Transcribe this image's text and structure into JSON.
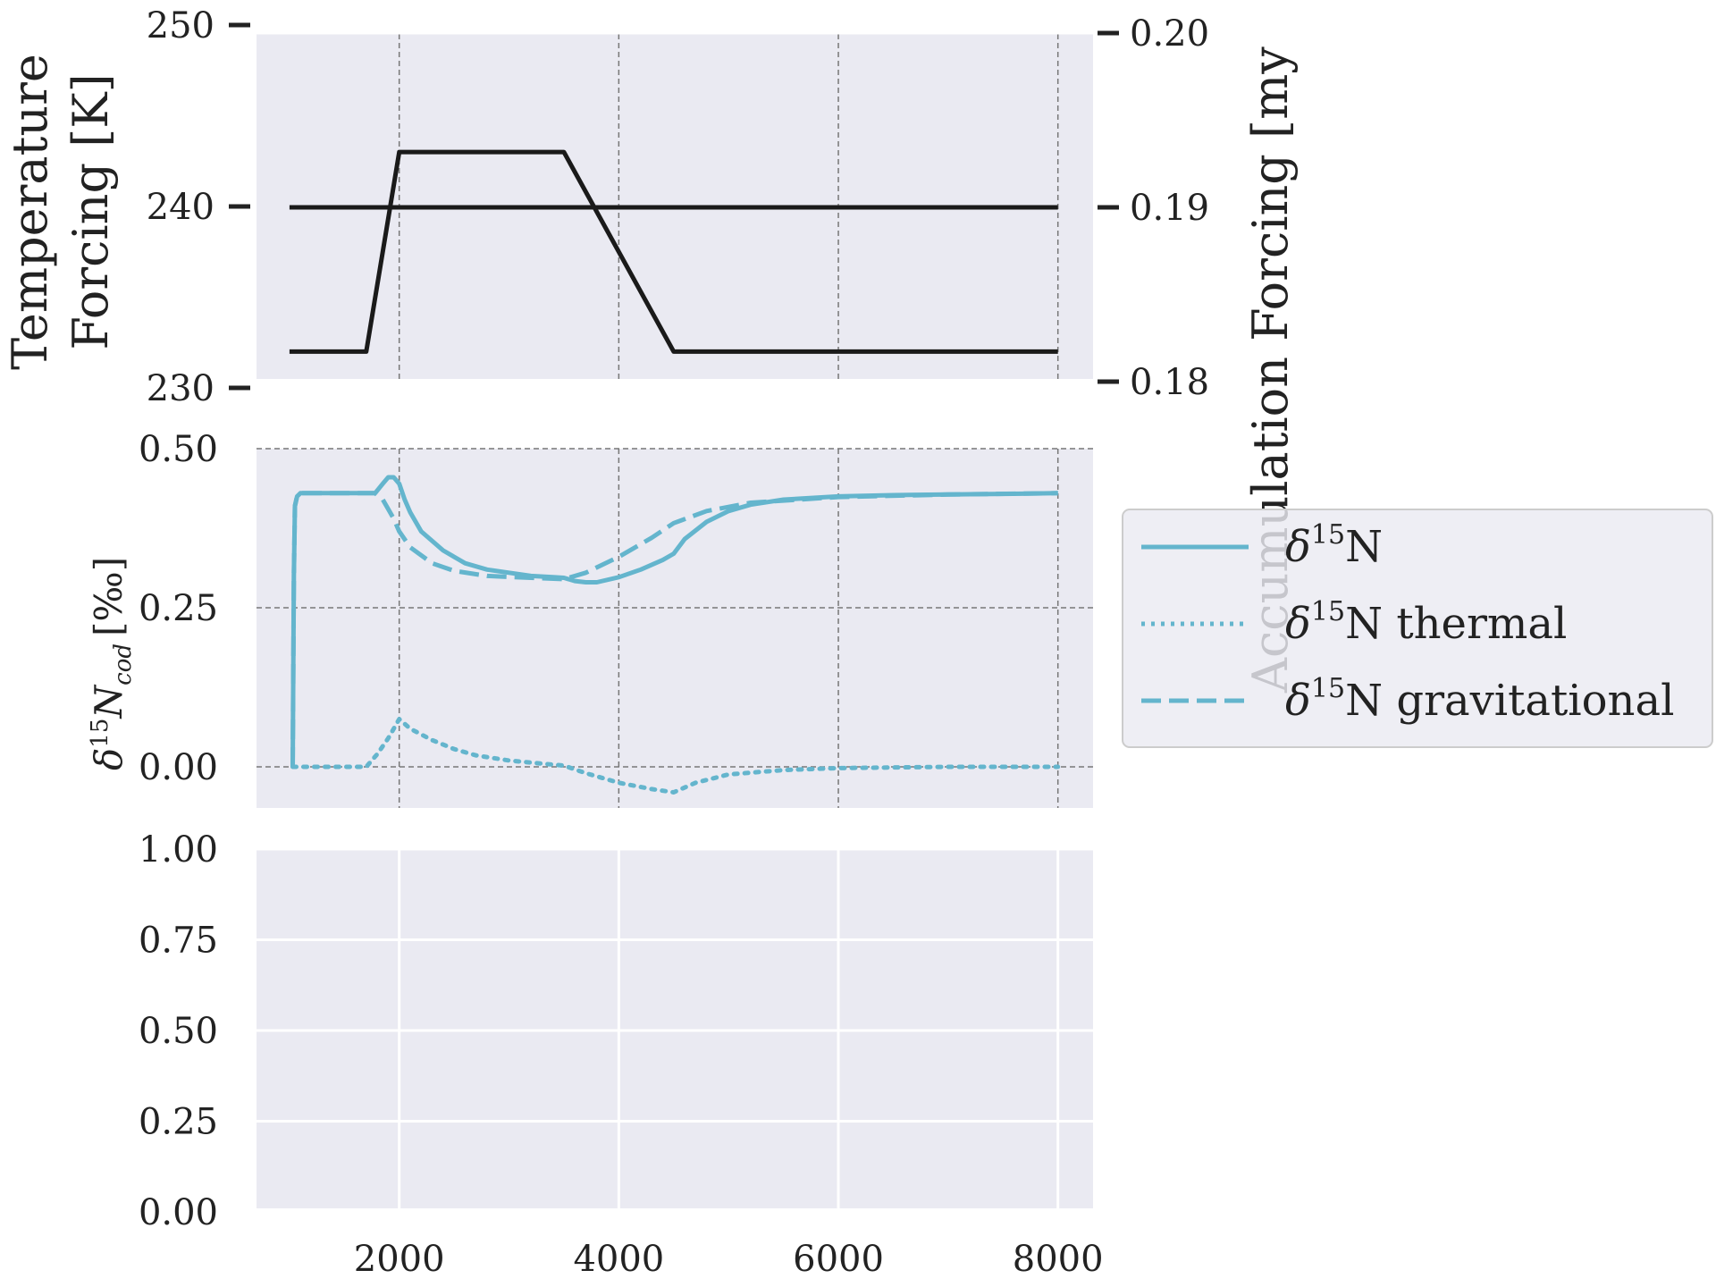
{
  "chart_data": [
    {
      "type": "line",
      "panel": "temperature-forcing",
      "ylabel_line1": "Temperature",
      "ylabel_line2": "Forcing [K]",
      "ylabel_right": "Accumulation Forcing [my",
      "right_label_color": "#55a868",
      "line_color": "#1a1a1a",
      "ylim": [
        230,
        250
      ],
      "yticks": [
        "230",
        "240",
        "250"
      ],
      "ylim_right": [
        0.18,
        0.2
      ],
      "yticks_right": [
        "0.18",
        "0.19",
        "0.20"
      ],
      "xlim": [
        700,
        8320
      ],
      "grid": "vertical dashed",
      "series": [
        {
          "axis": "left",
          "x": [
            1000,
            1700,
            2000,
            3500,
            4500,
            8000
          ],
          "y": [
            232,
            232,
            243,
            243,
            232,
            232
          ]
        },
        {
          "axis": "right",
          "x": [
            1000,
            8000
          ],
          "y": [
            0.19,
            0.19
          ]
        }
      ]
    },
    {
      "type": "line",
      "panel": "d15n",
      "ylabel": "δ15Ncod [‰]",
      "ylabel_main": "δ",
      "ylabel_sup": "15",
      "ylabel_N": "N",
      "ylabel_sub": "cod",
      "ylabel_unit": "[‰]",
      "line_color": "#64b5cd",
      "ylim": [
        -0.06,
        0.5
      ],
      "yticks": [
        "0.00",
        "0.25",
        "0.50"
      ],
      "xlim": [
        700,
        8320
      ],
      "grid": "dashed",
      "legend_position": "right",
      "series": [
        {
          "name": "δ15N",
          "legend_main": "δ",
          "legend_sup": "15",
          "legend_rest": "N",
          "style": "solid",
          "x": [
            1030,
            1040,
            1050,
            1070,
            1100,
            1150,
            1300,
            1500,
            1700,
            1780,
            1850,
            1900,
            1950,
            2000,
            2050,
            2100,
            2200,
            2400,
            2600,
            2800,
            3000,
            3200,
            3400,
            3500,
            3600,
            3700,
            3800,
            4000,
            4200,
            4400,
            4500,
            4600,
            4800,
            5000,
            5200,
            5500,
            6000,
            6500,
            7000,
            7500,
            8000
          ],
          "y": [
            0.0,
            0.3,
            0.41,
            0.425,
            0.43,
            0.43,
            0.43,
            0.43,
            0.43,
            0.43,
            0.445,
            0.455,
            0.455,
            0.445,
            0.42,
            0.4,
            0.37,
            0.34,
            0.32,
            0.31,
            0.305,
            0.3,
            0.298,
            0.297,
            0.292,
            0.29,
            0.29,
            0.298,
            0.31,
            0.325,
            0.335,
            0.358,
            0.385,
            0.402,
            0.412,
            0.42,
            0.425,
            0.427,
            0.428,
            0.429,
            0.43
          ]
        },
        {
          "name": "δ15N thermal",
          "legend_main": "δ",
          "legend_sup": "15",
          "legend_rest": "N thermal",
          "style": "dotted",
          "x": [
            1030,
            1700,
            1800,
            1900,
            2000,
            2100,
            2300,
            2500,
            2700,
            3000,
            3300,
            3500,
            3700,
            4000,
            4300,
            4500,
            4700,
            5000,
            5500,
            6000,
            7000,
            8000
          ],
          "y": [
            0.0,
            0.0,
            0.02,
            0.045,
            0.075,
            0.06,
            0.042,
            0.028,
            0.018,
            0.01,
            0.005,
            0.002,
            -0.01,
            -0.025,
            -0.035,
            -0.04,
            -0.025,
            -0.012,
            -0.005,
            -0.002,
            0.0,
            0.0
          ]
        },
        {
          "name": "δ15N gravitational",
          "legend_main": "δ",
          "legend_sup": "15",
          "legend_rest": "N gravitational",
          "style": "dashed",
          "x": [
            1030,
            1040,
            1050,
            1070,
            1100,
            1300,
            1700,
            1780,
            1850,
            1900,
            1950,
            2000,
            2100,
            2300,
            2500,
            2800,
            3200,
            3500,
            3700,
            4000,
            4300,
            4500,
            4800,
            5200,
            6000,
            7000,
            8000
          ],
          "y": [
            0.0,
            0.3,
            0.41,
            0.425,
            0.43,
            0.43,
            0.43,
            0.43,
            0.42,
            0.405,
            0.39,
            0.37,
            0.345,
            0.32,
            0.308,
            0.3,
            0.297,
            0.295,
            0.305,
            0.33,
            0.36,
            0.383,
            0.402,
            0.415,
            0.424,
            0.428,
            0.43
          ]
        }
      ]
    },
    {
      "type": "line",
      "panel": "empty",
      "ylim": [
        0,
        1
      ],
      "yticks": [
        "0.00",
        "0.25",
        "0.50",
        "0.75",
        "1.00"
      ],
      "xlim": [
        700,
        8320
      ],
      "xticks": [
        "2000",
        "4000",
        "6000",
        "8000"
      ],
      "grid": "solid white",
      "series": []
    }
  ]
}
